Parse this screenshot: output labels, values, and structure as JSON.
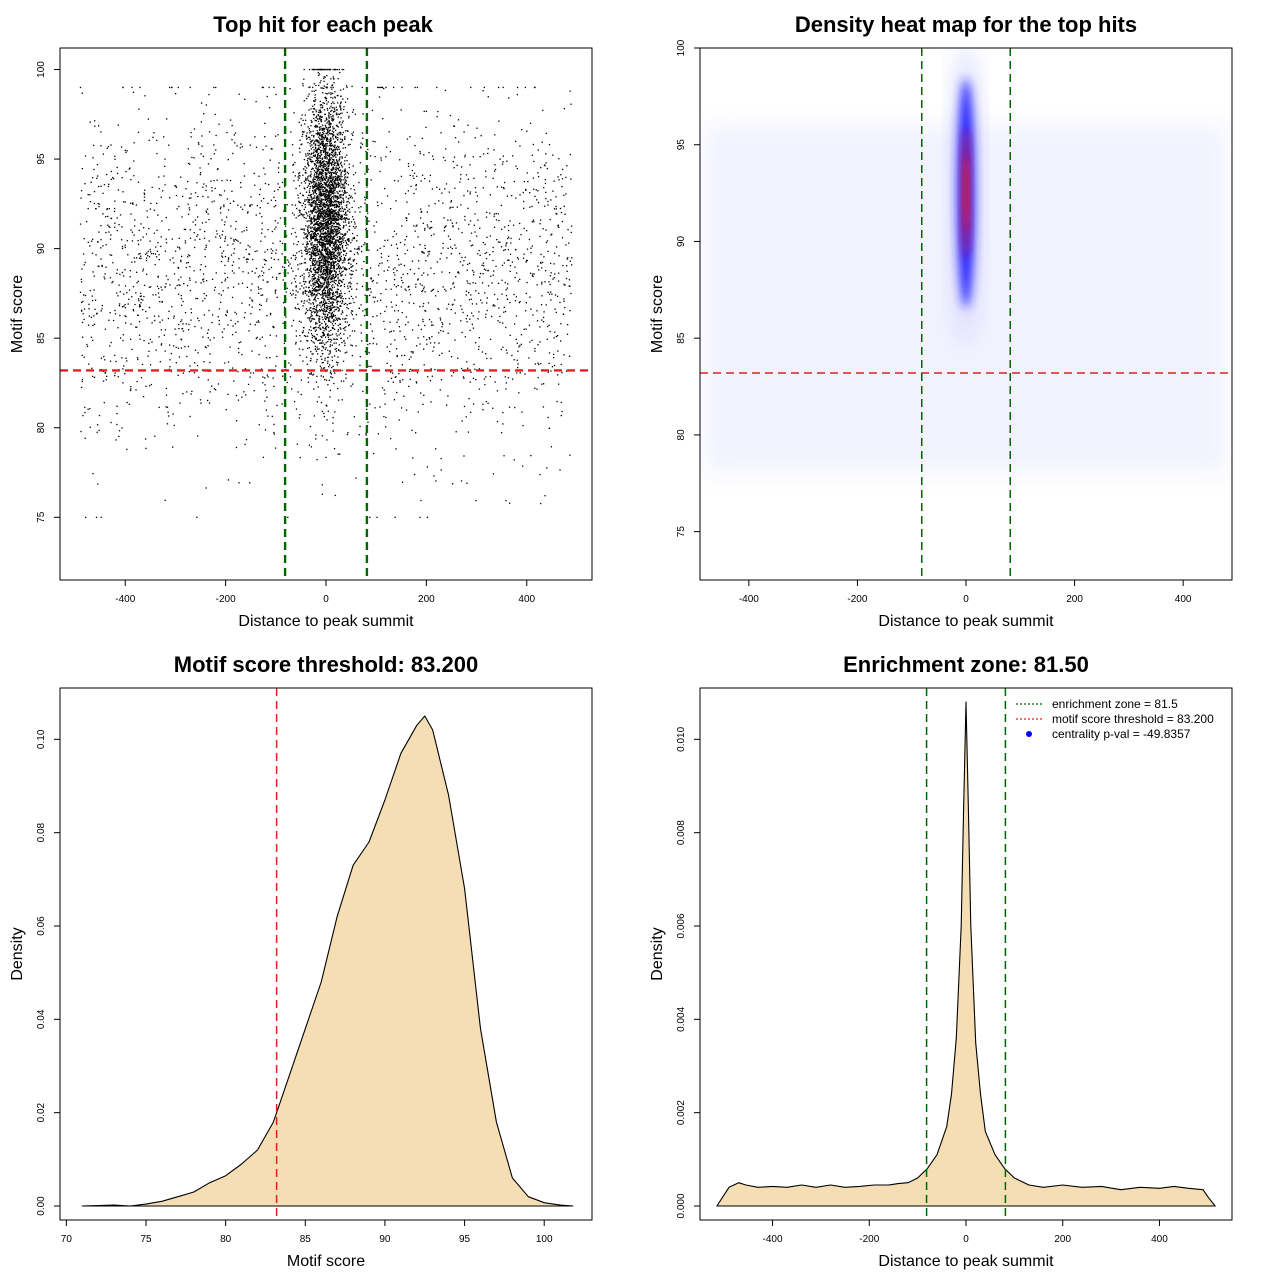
{
  "chart_data": [
    {
      "type": "scatter",
      "title": "Top hit for each peak",
      "xlabel": "Distance to peak summit",
      "ylabel": "Motif score",
      "xlim": [
        -530,
        530
      ],
      "ylim": [
        71.5,
        101.2
      ],
      "xticks": [
        -400,
        -200,
        0,
        200,
        400
      ],
      "yticks": [
        75,
        80,
        85,
        90,
        95,
        100
      ],
      "hlines": [
        {
          "y": 83.2,
          "color": "#dd2222",
          "style": "dashed"
        }
      ],
      "vlines": [
        {
          "x": -81.5,
          "color": "#006600",
          "style": "dashed"
        },
        {
          "x": 81.5,
          "color": "#006600",
          "style": "dashed"
        }
      ],
      "point_color": "#000000",
      "background": {
        "n": 2600,
        "x_range": [
          -490,
          490
        ],
        "y_mean": 88.5,
        "y_sd": 4.8,
        "y_range": [
          75,
          99
        ]
      },
      "central": {
        "n": 3600,
        "x_mean": 0,
        "x_sd": 22,
        "y_mean": 91.5,
        "y_sd": 3.6,
        "y_range": [
          72,
          100
        ]
      },
      "seed": 12345
    },
    {
      "type": "heatmap",
      "title": "Density heat map for the top hits",
      "xlabel": "Distance to peak summit",
      "ylabel": "Motif score",
      "xlim": [
        -490,
        490
      ],
      "ylim": [
        72.5,
        100
      ],
      "xticks": [
        -400,
        -200,
        0,
        200,
        400
      ],
      "yticks": [
        75,
        80,
        85,
        90,
        95,
        100
      ],
      "hlines": [
        {
          "y": 83.2,
          "color": "#dd2222",
          "style": "dashed"
        }
      ],
      "vlines": [
        {
          "x": -81.5,
          "color": "#006600",
          "style": "dashed"
        },
        {
          "x": 81.5,
          "color": "#006600",
          "style": "dashed"
        }
      ],
      "hotspot": {
        "x": 0,
        "y": 92.5,
        "x_sd": 15,
        "y_sd": 3.2
      },
      "palette": [
        "#ffffff",
        "#0000ff",
        "#ff0000"
      ]
    },
    {
      "type": "area",
      "title": "Motif score threshold: 83.200",
      "xlabel": "Motif score",
      "ylabel": "Density",
      "xlim": [
        69.6,
        103.0
      ],
      "ylim": [
        -0.003,
        0.111
      ],
      "xticks": [
        70,
        75,
        80,
        85,
        90,
        95,
        100
      ],
      "yticks": [
        0.0,
        0.02,
        0.04,
        0.06,
        0.08,
        0.1
      ],
      "ytick_labels": [
        "0.00",
        "0.02",
        "0.04",
        "0.06",
        "0.08",
        "0.10"
      ],
      "x": [
        71,
        73,
        74,
        75,
        76,
        77,
        78,
        79,
        80,
        81,
        82,
        83,
        84,
        85,
        86,
        87,
        88,
        89,
        90,
        91,
        92,
        92.5,
        93,
        94,
        95,
        96,
        97,
        98,
        99,
        100,
        101,
        101.8
      ],
      "y": [
        0.0,
        0.0002,
        0.0,
        0.0004,
        0.001,
        0.002,
        0.003,
        0.005,
        0.0065,
        0.009,
        0.012,
        0.018,
        0.028,
        0.038,
        0.048,
        0.062,
        0.073,
        0.078,
        0.087,
        0.097,
        0.103,
        0.105,
        0.102,
        0.088,
        0.068,
        0.038,
        0.018,
        0.006,
        0.002,
        0.0007,
        0.0002,
        0.0
      ],
      "fill": "#f5deb3",
      "vlines": [
        {
          "x": 83.2,
          "color": "#dd2222",
          "style": "dashed"
        }
      ]
    },
    {
      "type": "area",
      "title": "Enrichment zone: 81.50",
      "xlabel": "Distance to peak summit",
      "ylabel": "Density",
      "xlim": [
        -550,
        550
      ],
      "ylim": [
        -0.0003,
        0.0111
      ],
      "xticks": [
        -400,
        -200,
        0,
        200,
        400
      ],
      "yticks": [
        0.0,
        0.002,
        0.004,
        0.006,
        0.008,
        0.01
      ],
      "ytick_labels": [
        "0.000",
        "0.002",
        "0.004",
        "0.006",
        "0.008",
        "0.010"
      ],
      "x": [
        -515,
        -490,
        -470,
        -455,
        -430,
        -400,
        -370,
        -340,
        -310,
        -280,
        -250,
        -220,
        -190,
        -160,
        -140,
        -120,
        -100,
        -80,
        -60,
        -40,
        -30,
        -20,
        -10,
        -5,
        0,
        5,
        10,
        20,
        30,
        40,
        60,
        80,
        100,
        130,
        160,
        200,
        240,
        280,
        320,
        360,
        400,
        430,
        460,
        490,
        500,
        515
      ],
      "y": [
        0.0,
        0.0004,
        0.0005,
        0.00045,
        0.0004,
        0.00042,
        0.0004,
        0.00045,
        0.0004,
        0.00045,
        0.0004,
        0.00042,
        0.00045,
        0.00045,
        0.00048,
        0.0005,
        0.0006,
        0.0008,
        0.0011,
        0.0017,
        0.0024,
        0.0036,
        0.006,
        0.0085,
        0.0108,
        0.0085,
        0.006,
        0.0035,
        0.0024,
        0.0016,
        0.0011,
        0.0008,
        0.0006,
        0.00045,
        0.0004,
        0.00045,
        0.0004,
        0.00042,
        0.00035,
        0.0004,
        0.00038,
        0.00042,
        0.00038,
        0.00035,
        0.0002,
        0.0
      ],
      "fill": "#f5deb3",
      "vlines": [
        {
          "x": -81.5,
          "color": "#006600",
          "style": "dashed"
        },
        {
          "x": 81.5,
          "color": "#006600",
          "style": "dashed"
        }
      ],
      "legend": {
        "placement": "top-right",
        "entries": [
          {
            "label": "enrichment zone = 81.5",
            "color": "#006600",
            "style": "dotted-line"
          },
          {
            "label": "motif score threshold = 83.200",
            "color": "#dd2222",
            "style": "dotted-line"
          },
          {
            "label": "centrality p-val = -49.8357",
            "color": "#0000ff",
            "style": "point"
          }
        ]
      }
    }
  ]
}
